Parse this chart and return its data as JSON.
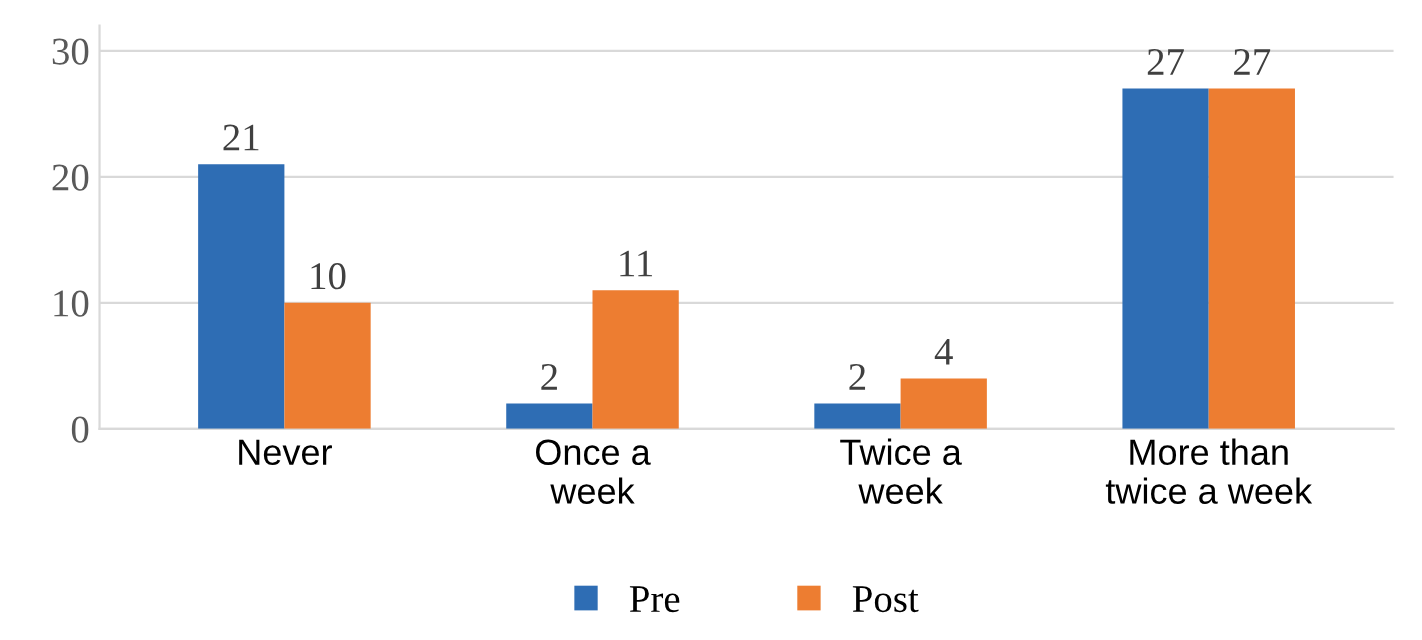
{
  "chart_data": {
    "type": "bar",
    "categories": [
      "Never",
      "Once a\nweek",
      "Twice a\nweek",
      "More than\ntwice a week"
    ],
    "series": [
      {
        "name": "Pre",
        "color": "#2e6db4",
        "values": [
          21,
          2,
          2,
          27
        ]
      },
      {
        "name": "Post",
        "color": "#ed7d31",
        "values": [
          10,
          11,
          4,
          27
        ]
      }
    ],
    "ylim": [
      0,
      32
    ],
    "yticks": [
      0,
      10,
      20,
      30
    ],
    "grid": "y",
    "legend": "bottom",
    "data_labels": true
  }
}
